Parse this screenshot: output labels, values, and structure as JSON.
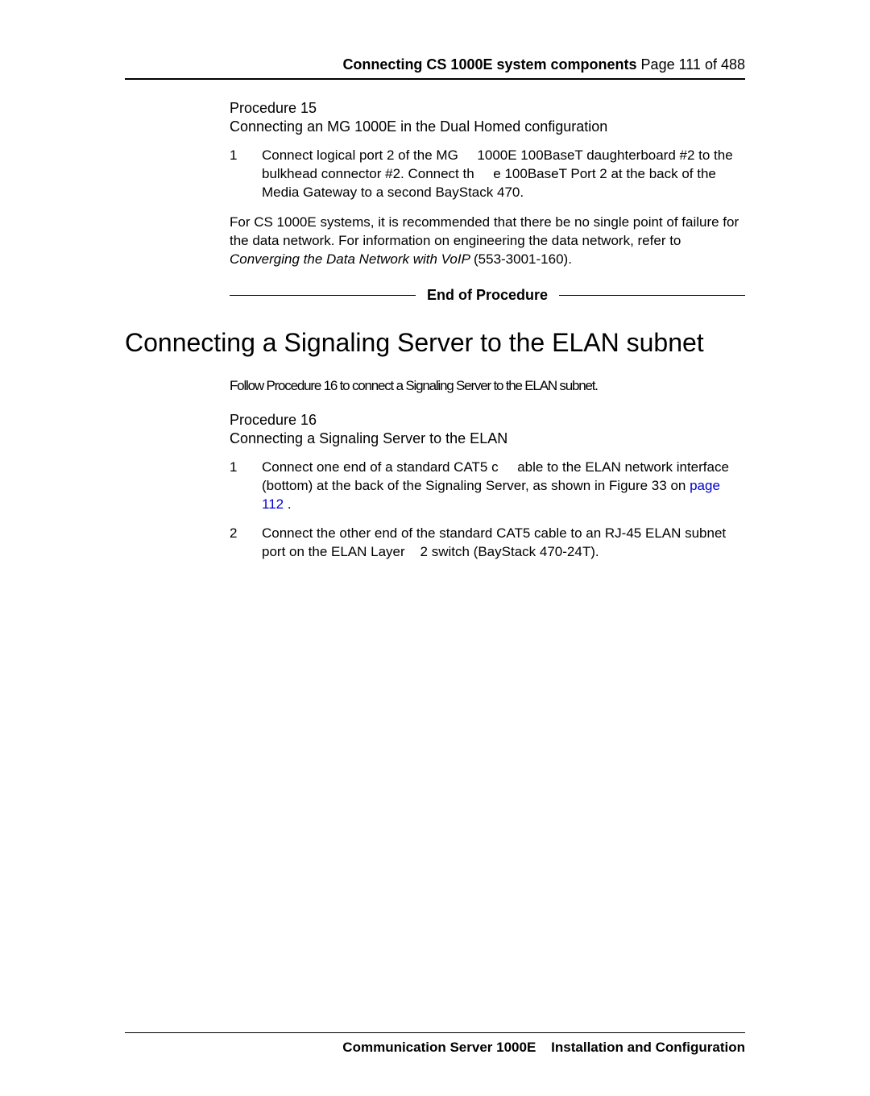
{
  "header": {
    "title_bold": "Connecting CS 1000E system components",
    "page_info": "  Page 111 of 488"
  },
  "procedure15": {
    "label": "Procedure 15",
    "title": "Connecting an MG 1000E in the Dual Homed configuration",
    "step1_num": "1",
    "step1_text": "Connect logical port 2 of the MG     1000E 100BaseT daughterboard #2 to the bulkhead connector #2. Connect th     e 100BaseT Port 2 at the back of the Media Gateway to a second BayStack 470.",
    "para_lead": "For CS 1000E systems, it is recommended that there be no single point of failure for the data network. For information on engineering the data network, refer to ",
    "para_italic": "Converging the Data Network with VoIP ",
    "para_tail": "(553-3001-160).",
    "end_label": "End of Procedure"
  },
  "section": {
    "heading": "Connecting a Signaling Server to the ELAN subnet",
    "intro": "Follow Procedure 16 to connect a Signaling Server to the ELAN subnet."
  },
  "procedure16": {
    "label": "Procedure 16",
    "title": "Connecting a Signaling Server to the ELAN",
    "step1_num": "1",
    "step1_text_a": "Connect one end of a standard CAT5 c     able to the ELAN network interface (bottom) at the back of the Signaling Server, as shown in Figure 33 on ",
    "step1_link": "page 112",
    "step1_text_b": " .",
    "step2_num": "2",
    "step2_text": "Connect the other end of the standard CAT5 cable to an RJ-45 ELAN subnet port on the ELAN Layer    2 switch (BayStack 470-24T)."
  },
  "footer": {
    "text": "Communication Server 1000E    Installation and Configuration"
  },
  "colors": {
    "link": "#0000cc",
    "text": "#000000",
    "bg": "#ffffff"
  }
}
